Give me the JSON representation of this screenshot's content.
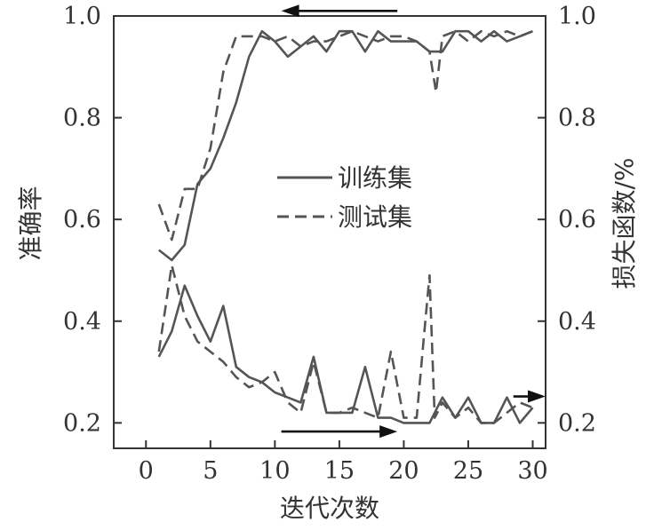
{
  "chart_data": {
    "type": "line",
    "xlabel": "迭代次数",
    "ylabel_left": "准确率",
    "ylabel_right": "损失函数/%",
    "xlim": [
      -2.5,
      31
    ],
    "ylim_left": [
      0.15,
      1.0
    ],
    "ylim_right": [
      0.15,
      1.0
    ],
    "xticks": [
      "0",
      "5",
      "10",
      "15",
      "20",
      "25",
      "30"
    ],
    "xtick_values": [
      0,
      5,
      10,
      15,
      20,
      25,
      30
    ],
    "yticks_left": [
      "0.2",
      "0.4",
      "0.6",
      "0.8",
      "1.0"
    ],
    "yticks_right": [
      "0.2",
      "0.4",
      "0.6",
      "0.8",
      "1.0"
    ],
    "ytick_values": [
      0.2,
      0.4,
      0.6,
      0.8,
      1.0
    ],
    "legend": {
      "position": "center",
      "entries": [
        {
          "label": "训练集",
          "style": "solid"
        },
        {
          "label": "测试集",
          "style": "dashed"
        }
      ]
    },
    "series": [
      {
        "name": "训练集",
        "role": "accuracy",
        "axis": "left",
        "style": "solid",
        "x": [
          1,
          2,
          3,
          4,
          5,
          6,
          7,
          8,
          9,
          10,
          11,
          12,
          13,
          14,
          15,
          16,
          17,
          18,
          19,
          20,
          21,
          22,
          23,
          24,
          25,
          26,
          27,
          28,
          29,
          30
        ],
        "y": [
          0.54,
          0.52,
          0.55,
          0.67,
          0.7,
          0.76,
          0.83,
          0.92,
          0.97,
          0.95,
          0.92,
          0.94,
          0.96,
          0.93,
          0.97,
          0.97,
          0.93,
          0.97,
          0.95,
          0.95,
          0.95,
          0.93,
          0.93,
          0.97,
          0.97,
          0.95,
          0.97,
          0.95,
          0.96,
          0.97
        ]
      },
      {
        "name": "测试集",
        "role": "accuracy",
        "axis": "left",
        "style": "dashed",
        "x": [
          1,
          2,
          3,
          4,
          5,
          6,
          7,
          8,
          9,
          10,
          11,
          12,
          13,
          14,
          15,
          16,
          17,
          18,
          19,
          20,
          21,
          22,
          22.5,
          23,
          24,
          25,
          26,
          27,
          28,
          29,
          30
        ],
        "y": [
          0.63,
          0.56,
          0.66,
          0.66,
          0.74,
          0.89,
          0.96,
          0.96,
          0.96,
          0.95,
          0.96,
          0.94,
          0.95,
          0.95,
          0.96,
          0.97,
          0.96,
          0.95,
          0.96,
          0.96,
          0.95,
          0.93,
          0.85,
          0.96,
          0.97,
          0.95,
          0.97,
          0.96,
          0.97,
          0.96,
          0.97
        ]
      },
      {
        "name": "训练集",
        "role": "loss",
        "axis": "right",
        "style": "solid",
        "x": [
          1,
          2,
          3,
          4,
          5,
          6,
          7,
          8,
          9,
          10,
          11,
          12,
          13,
          14,
          15,
          16,
          17,
          18,
          19,
          20,
          21,
          22,
          23,
          24,
          25,
          26,
          27,
          28,
          29,
          30
        ],
        "y": [
          0.33,
          0.38,
          0.47,
          0.41,
          0.36,
          0.43,
          0.31,
          0.29,
          0.28,
          0.26,
          0.25,
          0.24,
          0.33,
          0.22,
          0.22,
          0.22,
          0.31,
          0.21,
          0.21,
          0.2,
          0.2,
          0.2,
          0.25,
          0.21,
          0.25,
          0.2,
          0.2,
          0.25,
          0.2,
          0.23
        ]
      },
      {
        "name": "测试集",
        "role": "loss",
        "axis": "right",
        "style": "dashed",
        "x": [
          1,
          2,
          3,
          4,
          5,
          6,
          7,
          8,
          9,
          10,
          11,
          12,
          13,
          14,
          15,
          16,
          17,
          18,
          19,
          20,
          21,
          21.6,
          22,
          22.4,
          23,
          24,
          25,
          26,
          27,
          28,
          29,
          30
        ],
        "y": [
          0.34,
          0.51,
          0.41,
          0.36,
          0.34,
          0.32,
          0.29,
          0.27,
          0.28,
          0.3,
          0.24,
          0.22,
          0.32,
          0.22,
          0.22,
          0.23,
          0.22,
          0.21,
          0.34,
          0.21,
          0.21,
          0.38,
          0.49,
          0.21,
          0.24,
          0.21,
          0.23,
          0.2,
          0.2,
          0.22,
          0.24,
          0.23
        ]
      }
    ],
    "arrows": [
      {
        "label": "accuracy-arrow",
        "points_to": "left axis",
        "x_from": 19.5,
        "x_to": 10.5,
        "y": 1.01,
        "axis": "left"
      },
      {
        "label": "loss-arrow",
        "points_to": "right axis",
        "x_from": 10.5,
        "x_to": 19.5,
        "y": 0.183,
        "axis": "right"
      },
      {
        "label": "loss-arrow-end",
        "points_to": "right axis",
        "x_from": 28.5,
        "x_to": 31,
        "y": 0.252,
        "axis": "right"
      }
    ],
    "grid": false
  },
  "colors": {
    "line": "#555555",
    "axis": "#333333",
    "arrow": "#111111",
    "background": "#ffffff"
  }
}
